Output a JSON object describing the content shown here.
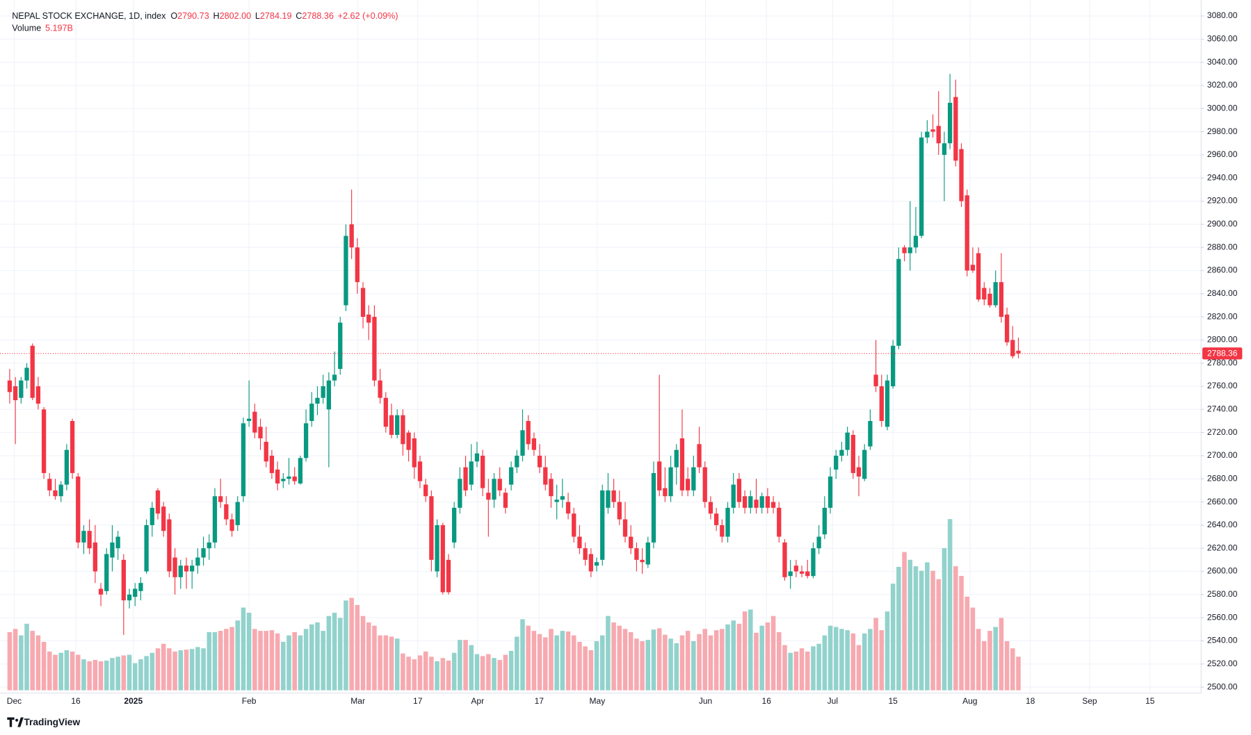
{
  "chart_data": {
    "type": "candlestick",
    "title": "NEPAL STOCK EXCHANGE, 1D, index",
    "ohlc_legend": [
      {
        "key": "O",
        "text": "2790.73"
      },
      {
        "key": "H",
        "text": "2802.00"
      },
      {
        "key": "L",
        "text": "2784.19"
      },
      {
        "key": "C",
        "text": "2788.36"
      }
    ],
    "change": "+2.62 (+0.09%)",
    "up_color": "#089981",
    "down_color": "#f23645",
    "open": [
      2765,
      2760,
      2750,
      2765,
      2795,
      2760,
      2740,
      2680,
      2670,
      2665,
      2675,
      2730,
      2682,
      2625,
      2635,
      2625,
      2585,
      2583,
      2612,
      2620,
      2610,
      2575,
      2578,
      2583,
      2600,
      2640,
      2670,
      2656,
      2645,
      2612,
      2595,
      2605,
      2600,
      2605,
      2612,
      2620,
      2625,
      2665,
      2658,
      2645,
      2640,
      2665,
      2730,
      2738,
      2725,
      2712,
      2700,
      2688,
      2678,
      2680,
      2682,
      2676,
      2698,
      2730,
      2745,
      2750,
      2740,
      2765,
      2775,
      2830,
      2900,
      2880,
      2845,
      2822,
      2820,
      2765,
      2750,
      2735,
      2718,
      2735,
      2720,
      2715,
      2695,
      2675,
      2665,
      2600,
      2640,
      2610,
      2625,
      2655,
      2690,
      2675,
      2695,
      2700,
      2668,
      2662,
      2680,
      2668,
      2675,
      2690,
      2700,
      2730,
      2715,
      2700,
      2690,
      2680,
      2660,
      2662,
      2660,
      2650,
      2630,
      2620,
      2615,
      2605,
      2610,
      2655,
      2670,
      2660,
      2645,
      2630,
      2620,
      2610,
      2606,
      2625,
      2695,
      2672,
      2665,
      2690,
      2715,
      2680,
      2670,
      2710,
      2690,
      2660,
      2650,
      2640,
      2630,
      2655,
      2680,
      2665,
      2655,
      2662,
      2655,
      2665,
      2660,
      2655,
      2625,
      2596,
      2605,
      2600,
      2600,
      2596,
      2620,
      2632,
      2655,
      2688,
      2700,
      2705,
      2718,
      2690,
      2680,
      2708,
      2770,
      2760,
      2725,
      2760,
      2795,
      2880,
      2875,
      2880,
      2890,
      2975,
      2982,
      2985,
      2960,
      2970,
      3010,
      2965,
      2925,
      2865,
      2875,
      2845,
      2840,
      2830,
      2850,
      2822,
      2800,
      2790.73
    ],
    "high": [
      2775,
      2768,
      2768,
      2780,
      2797,
      2768,
      2742,
      2685,
      2680,
      2678,
      2710,
      2732,
      2685,
      2640,
      2645,
      2640,
      2590,
      2620,
      2640,
      2635,
      2615,
      2585,
      2590,
      2595,
      2645,
      2660,
      2672,
      2660,
      2650,
      2620,
      2610,
      2612,
      2610,
      2620,
      2630,
      2632,
      2672,
      2680,
      2665,
      2650,
      2665,
      2733,
      2765,
      2745,
      2732,
      2725,
      2705,
      2695,
      2685,
      2698,
      2690,
      2700,
      2740,
      2755,
      2760,
      2770,
      2772,
      2790,
      2820,
      2900,
      2930,
      2888,
      2850,
      2830,
      2830,
      2775,
      2755,
      2745,
      2740,
      2740,
      2722,
      2720,
      2700,
      2680,
      2670,
      2645,
      2642,
      2615,
      2660,
      2690,
      2700,
      2710,
      2712,
      2705,
      2680,
      2685,
      2690,
      2672,
      2695,
      2705,
      2740,
      2735,
      2720,
      2710,
      2700,
      2685,
      2675,
      2680,
      2668,
      2655,
      2640,
      2625,
      2620,
      2612,
      2675,
      2685,
      2680,
      2670,
      2660,
      2640,
      2625,
      2620,
      2630,
      2695,
      2770,
      2690,
      2700,
      2710,
      2740,
      2690,
      2700,
      2725,
      2695,
      2665,
      2655,
      2645,
      2660,
      2685,
      2685,
      2670,
      2670,
      2680,
      2668,
      2672,
      2665,
      2660,
      2628,
      2610,
      2610,
      2605,
      2610,
      2625,
      2640,
      2665,
      2690,
      2705,
      2712,
      2725,
      2722,
      2700,
      2710,
      2740,
      2800,
      2770,
      2770,
      2800,
      2880,
      2882,
      2920,
      2915,
      2980,
      2990,
      2995,
      3015,
      2980,
      3030,
      3025,
      2970,
      2930,
      2880,
      2880,
      2850,
      2845,
      2860,
      2875,
      2828,
      2812,
      2802
    ],
    "low": [
      2745,
      2710,
      2745,
      2758,
      2748,
      2740,
      2680,
      2665,
      2662,
      2660,
      2670,
      2680,
      2620,
      2615,
      2615,
      2590,
      2570,
      2580,
      2600,
      2610,
      2545,
      2568,
      2570,
      2575,
      2598,
      2630,
      2645,
      2630,
      2595,
      2580,
      2585,
      2585,
      2585,
      2598,
      2605,
      2610,
      2620,
      2655,
      2640,
      2630,
      2635,
      2660,
      2725,
      2715,
      2705,
      2690,
      2680,
      2670,
      2672,
      2675,
      2675,
      2675,
      2695,
      2725,
      2735,
      2745,
      2690,
      2760,
      2770,
      2825,
      2870,
      2840,
      2810,
      2800,
      2760,
      2745,
      2720,
      2715,
      2715,
      2700,
      2695,
      2680,
      2672,
      2660,
      2600,
      2595,
      2580,
      2580,
      2620,
      2650,
      2665,
      2670,
      2690,
      2665,
      2630,
      2655,
      2665,
      2650,
      2670,
      2685,
      2695,
      2705,
      2700,
      2685,
      2670,
      2655,
      2645,
      2655,
      2645,
      2625,
      2615,
      2605,
      2595,
      2600,
      2605,
      2650,
      2655,
      2640,
      2625,
      2615,
      2600,
      2598,
      2603,
      2620,
      2665,
      2660,
      2660,
      2675,
      2665,
      2665,
      2665,
      2685,
      2655,
      2645,
      2635,
      2625,
      2625,
      2650,
      2655,
      2650,
      2650,
      2650,
      2650,
      2650,
      2650,
      2625,
      2592,
      2585,
      2595,
      2595,
      2594,
      2594,
      2615,
      2628,
      2650,
      2680,
      2695,
      2700,
      2680,
      2665,
      2678,
      2705,
      2755,
      2725,
      2722,
      2758,
      2792,
      2868,
      2860,
      2875,
      2888,
      2970,
      2975,
      2960,
      2920,
      2965,
      2950,
      2915,
      2855,
      2858,
      2833,
      2830,
      2828,
      2828,
      2815,
      2795,
      2784,
      2784.19
    ],
    "close": [
      2755,
      2748,
      2765,
      2776,
      2750,
      2745,
      2685,
      2670,
      2665,
      2675,
      2705,
      2685,
      2625,
      2635,
      2620,
      2600,
      2580,
      2615,
      2625,
      2630,
      2575,
      2580,
      2585,
      2590,
      2640,
      2655,
      2650,
      2635,
      2600,
      2595,
      2605,
      2600,
      2605,
      2612,
      2620,
      2625,
      2665,
      2660,
      2645,
      2635,
      2660,
      2728,
      2732,
      2720,
      2715,
      2695,
      2685,
      2676,
      2680,
      2682,
      2678,
      2698,
      2728,
      2745,
      2750,
      2760,
      2765,
      2770,
      2815,
      2890,
      2880,
      2850,
      2820,
      2815,
      2765,
      2750,
      2725,
      2718,
      2735,
      2710,
      2705,
      2690,
      2678,
      2665,
      2610,
      2640,
      2582,
      2582,
      2655,
      2680,
      2670,
      2695,
      2702,
      2672,
      2662,
      2680,
      2670,
      2655,
      2690,
      2700,
      2722,
      2710,
      2705,
      2690,
      2675,
      2665,
      2662,
      2665,
      2650,
      2630,
      2620,
      2610,
      2600,
      2608,
      2670,
      2670,
      2660,
      2645,
      2630,
      2620,
      2610,
      2608,
      2625,
      2685,
      2670,
      2665,
      2690,
      2705,
      2670,
      2670,
      2690,
      2690,
      2660,
      2650,
      2640,
      2630,
      2655,
      2675,
      2660,
      2655,
      2665,
      2655,
      2665,
      2655,
      2655,
      2630,
      2595,
      2600,
      2600,
      2598,
      2596,
      2620,
      2630,
      2655,
      2682,
      2700,
      2705,
      2720,
      2685,
      2682,
      2705,
      2730,
      2760,
      2730,
      2765,
      2795,
      2870,
      2875,
      2880,
      2890,
      2975,
      2980,
      2980,
      2970,
      2970,
      3005,
      2955,
      2920,
      2860,
      2860,
      2835,
      2835,
      2830,
      2850,
      2820,
      2798,
      2786,
      2788.36
    ],
    "volume": {
      "name": "Volume",
      "values": [
        9,
        9.5,
        8.5,
        10.3,
        9.2,
        8.5,
        7.5,
        6,
        5.5,
        5.8,
        6.2,
        6,
        5.5,
        4.8,
        4.5,
        4.7,
        4.5,
        4.6,
        5,
        5.2,
        5.4,
        5.5,
        4.2,
        4.8,
        5.3,
        5.8,
        6.5,
        7.2,
        6.5,
        6,
        6.2,
        6.3,
        6.4,
        6.7,
        6.5,
        9,
        9,
        9.2,
        9.5,
        9.8,
        10.8,
        12.8,
        12,
        9.5,
        9.2,
        9.2,
        9.3,
        8.8,
        7.5,
        8.5,
        9,
        8.5,
        9.5,
        10.2,
        10.5,
        9.2,
        11.5,
        12,
        11.2,
        13.9,
        14.3,
        13.2,
        11.5,
        10.5,
        10,
        8.5,
        8.5,
        8.3,
        8,
        5.7,
        5.2,
        4.8,
        5.4,
        6,
        5.2,
        4.5,
        5,
        4.6,
        5.8,
        7.8,
        7.8,
        7,
        5.6,
        5.3,
        5.6,
        5,
        4.7,
        5.5,
        6.1,
        8.3,
        11,
        10,
        9.2,
        8.7,
        8.2,
        9.5,
        8.5,
        9.2,
        9.1,
        8.5,
        7.5,
        6.8,
        6.2,
        7.6,
        8.5,
        11.5,
        10.5,
        10,
        9.5,
        9,
        8,
        7.6,
        7.8,
        9.4,
        9.6,
        8.6,
        8,
        7.3,
        8.5,
        9.2,
        7.6,
        8.7,
        9.5,
        8.5,
        9.3,
        9.5,
        10.2,
        10.8,
        10.3,
        12.2,
        12.5,
        8.9,
        10,
        10.5,
        11.5,
        9,
        7,
        5.8,
        6,
        6.5,
        6,
        6.8,
        7.2,
        8.5,
        10,
        9.8,
        9.5,
        9.3,
        8.8,
        7,
        8.8,
        9.5,
        11.2,
        9.3,
        12.2,
        16.5,
        19.1,
        21.4,
        20.2,
        19.2,
        18.5,
        19.8,
        18.5,
        17.2,
        22,
        26.5,
        19.2,
        17.7,
        14.5,
        12.8,
        9.5,
        7.6,
        9.2,
        9.8,
        11.2,
        7.6,
        6.5,
        5.197
      ],
      "legend_value": {
        "value": 5.197,
        "label": "5.197B"
      },
      "up_color": "#92d2cc",
      "down_color": "#f7a9b0",
      "ylim": [
        0,
        37
      ]
    },
    "xlim": [
      -1,
      209
    ],
    "xticks": [
      {
        "value": 0.8,
        "label": "Dec"
      },
      {
        "value": 11.6,
        "label": "16"
      },
      {
        "value": 21.7,
        "label": "2025"
      },
      {
        "value": 42,
        "label": "Feb"
      },
      {
        "value": 61.1,
        "label": "Mar"
      },
      {
        "value": 71.6,
        "label": "17"
      },
      {
        "value": 82.1,
        "label": "Apr"
      },
      {
        "value": 92.9,
        "label": "17"
      },
      {
        "value": 103.1,
        "label": "May"
      },
      {
        "value": 122.1,
        "label": "Jun"
      },
      {
        "value": 132.8,
        "label": "16"
      },
      {
        "value": 144.4,
        "label": "Jul"
      },
      {
        "value": 155,
        "label": "15"
      },
      {
        "value": 168.5,
        "label": "Aug"
      },
      {
        "value": 179.1,
        "label": "18"
      },
      {
        "value": 189.5,
        "label": "Sep"
      },
      {
        "value": 200.1,
        "label": "15"
      }
    ],
    "ylim": [
      2500,
      3080
    ],
    "yticks": [
      {
        "value": 2500,
        "label": "2500.00"
      },
      {
        "value": 2520,
        "label": "2520.00"
      },
      {
        "value": 2540,
        "label": "2540.00"
      },
      {
        "value": 2560,
        "label": "2560.00"
      },
      {
        "value": 2580,
        "label": "2580.00"
      },
      {
        "value": 2600,
        "label": "2600.00"
      },
      {
        "value": 2620,
        "label": "2620.00"
      },
      {
        "value": 2640,
        "label": "2640.00"
      },
      {
        "value": 2660,
        "label": "2660.00"
      },
      {
        "value": 2680,
        "label": "2680.00"
      },
      {
        "value": 2700,
        "label": "2700.00"
      },
      {
        "value": 2720,
        "label": "2720.00"
      },
      {
        "value": 2740,
        "label": "2740.00"
      },
      {
        "value": 2760,
        "label": "2760.00"
      },
      {
        "value": 2780,
        "label": "2780.00"
      },
      {
        "value": 2800,
        "label": "2800.00"
      },
      {
        "value": 2820,
        "label": "2820.00"
      },
      {
        "value": 2840,
        "label": "2840.00"
      },
      {
        "value": 2860,
        "label": "2860.00"
      },
      {
        "value": 2880,
        "label": "2880.00"
      },
      {
        "value": 2900,
        "label": "2900.00"
      },
      {
        "value": 2920,
        "label": "2920.00"
      },
      {
        "value": 2940,
        "label": "2940.00"
      },
      {
        "value": 2960,
        "label": "2960.00"
      },
      {
        "value": 2980,
        "label": "2980.00"
      },
      {
        "value": 3000,
        "label": "3000.00"
      },
      {
        "value": 3020,
        "label": "3020.00"
      },
      {
        "value": 3040,
        "label": "3040.00"
      },
      {
        "value": 3060,
        "label": "3060.00"
      },
      {
        "value": 3080,
        "label": "3080.00"
      }
    ],
    "grid": true,
    "last_price_line": true
  },
  "brand": "TradingView"
}
